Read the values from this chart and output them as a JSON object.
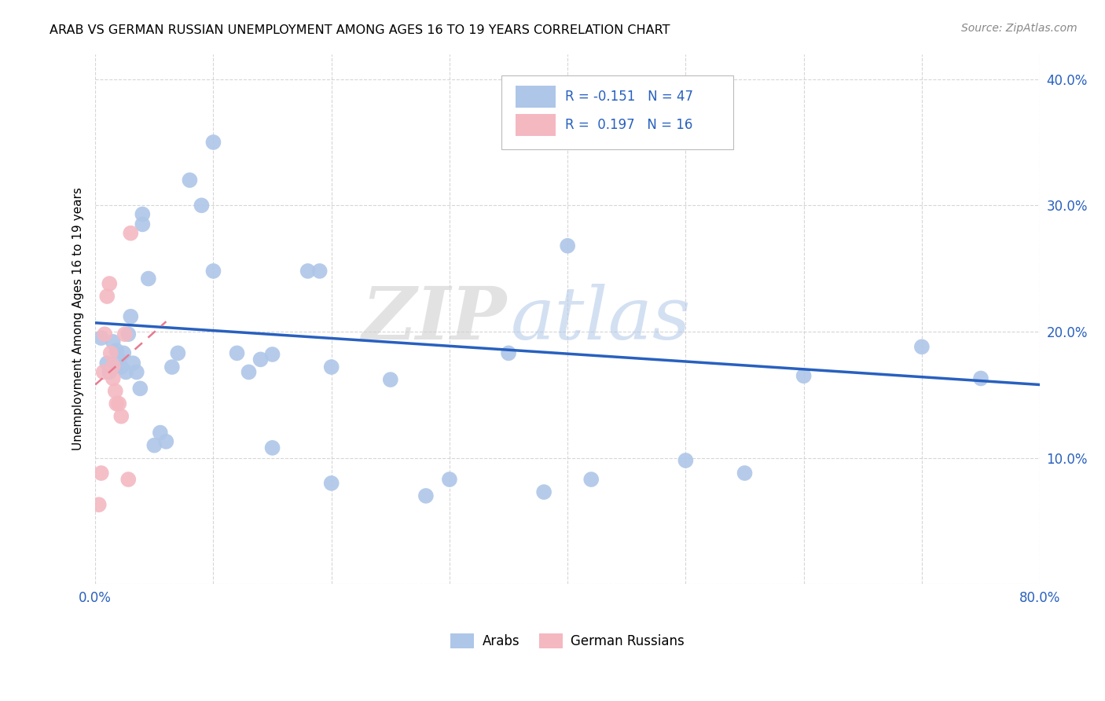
{
  "title": "ARAB VS GERMAN RUSSIAN UNEMPLOYMENT AMONG AGES 16 TO 19 YEARS CORRELATION CHART",
  "source": "Source: ZipAtlas.com",
  "ylabel": "Unemployment Among Ages 16 to 19 years",
  "xlim": [
    0.0,
    0.8
  ],
  "ylim": [
    0.0,
    0.42
  ],
  "xticks": [
    0.0,
    0.1,
    0.2,
    0.3,
    0.4,
    0.5,
    0.6,
    0.7,
    0.8
  ],
  "xticklabels": [
    "0.0%",
    "",
    "",
    "",
    "",
    "",
    "",
    "",
    "80.0%"
  ],
  "yticks": [
    0.0,
    0.1,
    0.2,
    0.3,
    0.4
  ],
  "yticklabels": [
    "",
    "10.0%",
    "20.0%",
    "30.0%",
    "40.0%"
  ],
  "background_color": "#ffffff",
  "grid_color": "#cccccc",
  "arab_color": "#aec6e8",
  "german_russian_color": "#f4b8c1",
  "arab_line_color": "#2860bf",
  "german_russian_line_color": "#e87a90",
  "legend_text_color": "#2860bf",
  "arab_R": -0.151,
  "arab_N": 47,
  "german_russian_R": 0.197,
  "german_russian_N": 16,
  "arab_points_x": [
    0.005,
    0.01,
    0.012,
    0.015,
    0.018,
    0.02,
    0.022,
    0.024,
    0.026,
    0.028,
    0.03,
    0.032,
    0.035,
    0.038,
    0.04,
    0.04,
    0.045,
    0.05,
    0.055,
    0.06,
    0.065,
    0.07,
    0.08,
    0.09,
    0.1,
    0.1,
    0.12,
    0.13,
    0.14,
    0.15,
    0.15,
    0.18,
    0.19,
    0.2,
    0.2,
    0.25,
    0.28,
    0.3,
    0.35,
    0.38,
    0.4,
    0.42,
    0.5,
    0.55,
    0.6,
    0.7,
    0.75
  ],
  "arab_points_y": [
    0.195,
    0.175,
    0.168,
    0.192,
    0.185,
    0.178,
    0.172,
    0.183,
    0.168,
    0.198,
    0.212,
    0.175,
    0.168,
    0.155,
    0.293,
    0.285,
    0.242,
    0.11,
    0.12,
    0.113,
    0.172,
    0.183,
    0.32,
    0.3,
    0.35,
    0.248,
    0.183,
    0.168,
    0.178,
    0.182,
    0.108,
    0.248,
    0.248,
    0.172,
    0.08,
    0.162,
    0.07,
    0.083,
    0.183,
    0.073,
    0.268,
    0.083,
    0.098,
    0.088,
    0.165,
    0.188,
    0.163
  ],
  "german_russian_points_x": [
    0.003,
    0.005,
    0.007,
    0.008,
    0.01,
    0.012,
    0.013,
    0.015,
    0.015,
    0.017,
    0.018,
    0.02,
    0.022,
    0.025,
    0.028,
    0.03
  ],
  "german_russian_points_y": [
    0.063,
    0.088,
    0.168,
    0.198,
    0.228,
    0.238,
    0.183,
    0.173,
    0.163,
    0.153,
    0.143,
    0.143,
    0.133,
    0.198,
    0.083,
    0.278
  ],
  "arab_trendline_x": [
    0.0,
    0.8
  ],
  "arab_trendline_y": [
    0.207,
    0.158
  ],
  "german_russian_trendline_x": [
    0.0,
    0.06
  ],
  "german_russian_trendline_y": [
    0.158,
    0.208
  ]
}
